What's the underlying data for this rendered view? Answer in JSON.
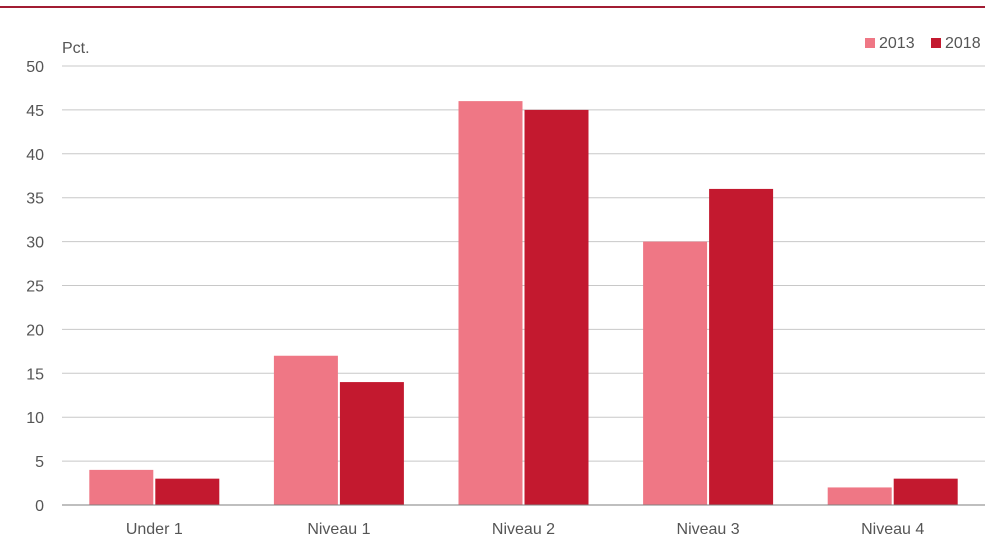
{
  "chart_data": {
    "type": "bar",
    "ylabel": "Pct.",
    "ylim": [
      0,
      50
    ],
    "yticks": [
      0,
      5,
      10,
      15,
      20,
      25,
      30,
      35,
      40,
      45,
      50
    ],
    "grid": true,
    "legend_position": "top-right",
    "categories": [
      "Under 1",
      "Niveau 1",
      "Niveau 2",
      "Niveau 3",
      "Niveau 4"
    ],
    "series": [
      {
        "name": "2013",
        "color": "#ef7785",
        "values": [
          4,
          17,
          46,
          30,
          2
        ]
      },
      {
        "name": "2018",
        "color": "#c3192f",
        "values": [
          3,
          14,
          45,
          36,
          3
        ]
      }
    ]
  }
}
